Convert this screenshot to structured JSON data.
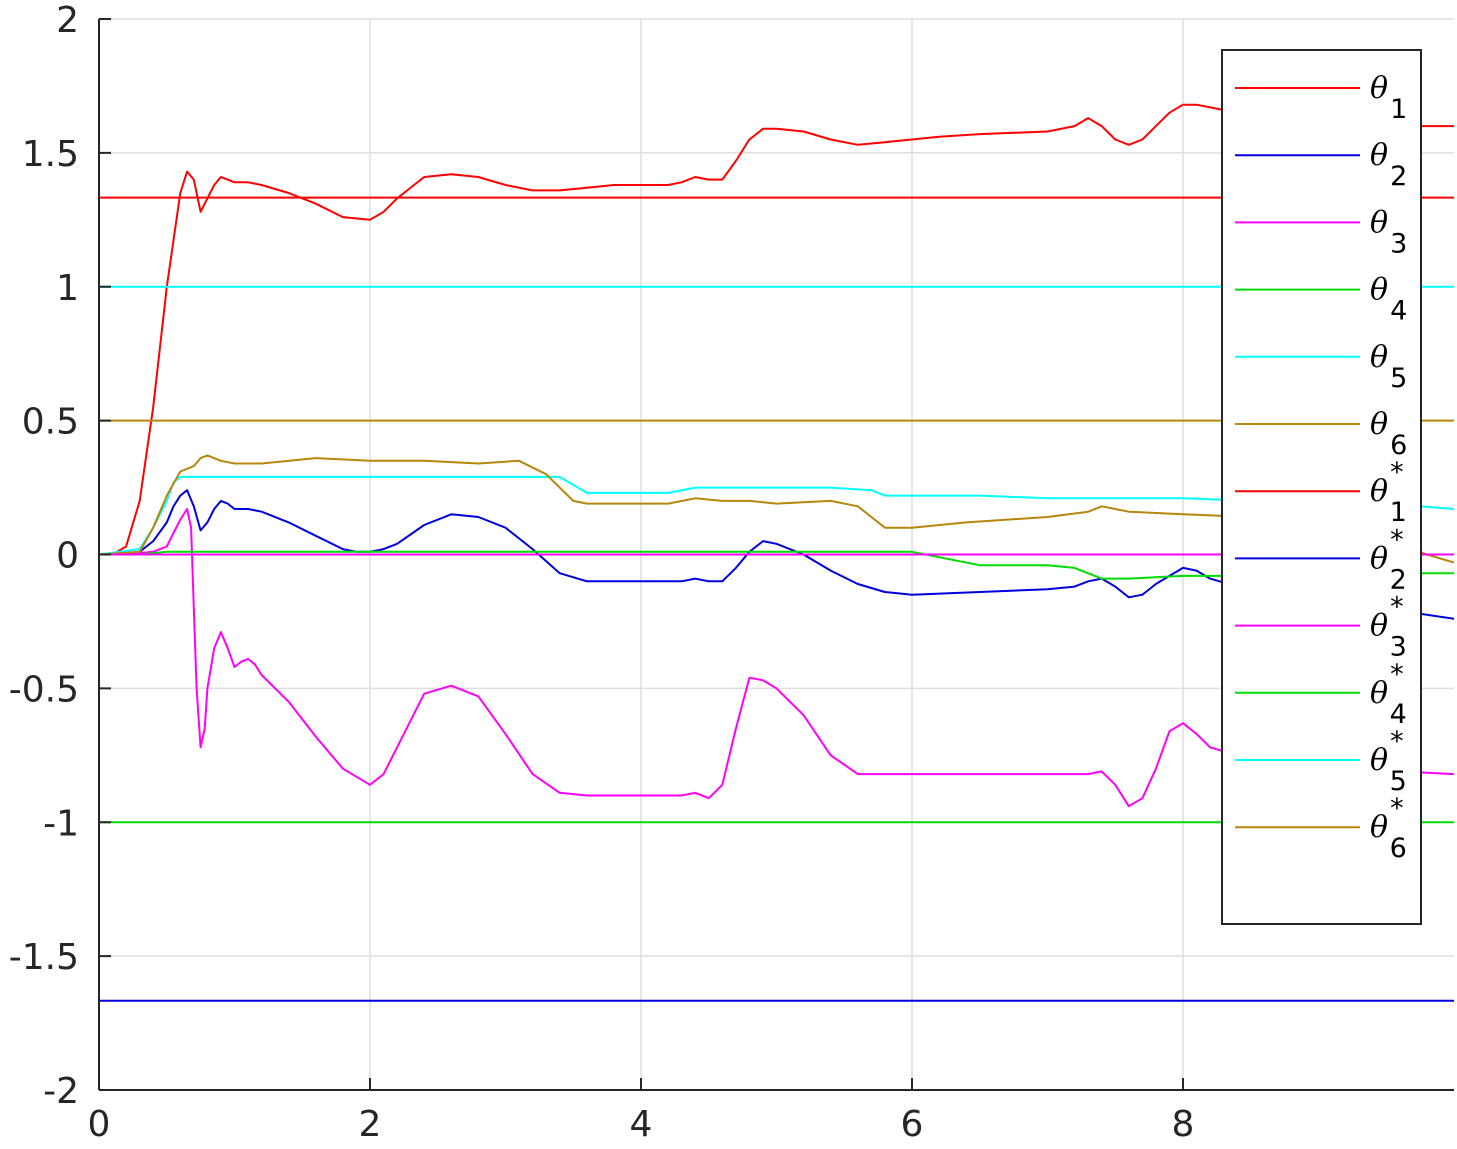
{
  "chart_data": {
    "type": "line",
    "title": "",
    "xlabel": "",
    "ylabel": "",
    "xlim": [
      0,
      10
    ],
    "ylim": [
      -2,
      2
    ],
    "xticks": [
      0,
      2,
      4,
      6,
      8
    ],
    "xtick_labels": [
      "0",
      "2",
      "4",
      "6",
      "8"
    ],
    "yticks": [
      -2,
      -1.5,
      -1,
      -0.5,
      0,
      0.5,
      1,
      1.5,
      2
    ],
    "ytick_labels": [
      "-2",
      "-1.5",
      "-1",
      "-0.5",
      "0",
      "0.5",
      "1",
      "1.5",
      "2"
    ],
    "grid": true,
    "legend_position": "top-right",
    "series": [
      {
        "name": "θ1",
        "label_base": "θ",
        "label_sub": "1",
        "label_sup": "",
        "color": "#ff0000",
        "x": [
          0,
          0.1,
          0.2,
          0.3,
          0.4,
          0.5,
          0.6,
          0.65,
          0.7,
          0.75,
          0.8,
          0.85,
          0.9,
          0.95,
          1.0,
          1.1,
          1.2,
          1.4,
          1.6,
          1.8,
          2.0,
          2.1,
          2.2,
          2.4,
          2.6,
          2.8,
          3.0,
          3.2,
          3.4,
          3.6,
          3.8,
          4.0,
          4.2,
          4.3,
          4.4,
          4.5,
          4.6,
          4.7,
          4.8,
          4.9,
          5.0,
          5.2,
          5.4,
          5.6,
          5.8,
          6.0,
          6.2,
          6.5,
          7.0,
          7.2,
          7.3,
          7.4,
          7.5,
          7.6,
          7.7,
          7.8,
          7.9,
          8.0,
          8.1,
          8.3,
          8.6,
          9.0,
          9.4,
          9.7,
          10.0
        ],
        "y": [
          0.0,
          0.0,
          0.03,
          0.2,
          0.55,
          1.0,
          1.35,
          1.43,
          1.4,
          1.28,
          1.33,
          1.38,
          1.41,
          1.4,
          1.39,
          1.39,
          1.38,
          1.35,
          1.31,
          1.26,
          1.25,
          1.28,
          1.33,
          1.41,
          1.42,
          1.41,
          1.38,
          1.36,
          1.36,
          1.37,
          1.38,
          1.38,
          1.38,
          1.39,
          1.41,
          1.4,
          1.4,
          1.47,
          1.55,
          1.59,
          1.59,
          1.58,
          1.55,
          1.53,
          1.54,
          1.55,
          1.56,
          1.57,
          1.58,
          1.6,
          1.63,
          1.6,
          1.55,
          1.53,
          1.55,
          1.6,
          1.65,
          1.68,
          1.68,
          1.66,
          1.64,
          1.62,
          1.61,
          1.6,
          1.6
        ]
      },
      {
        "name": "θ2",
        "label_base": "θ",
        "label_sub": "2",
        "label_sup": "",
        "color": "#0000dd",
        "x": [
          0,
          0.2,
          0.3,
          0.4,
          0.5,
          0.55,
          0.6,
          0.65,
          0.7,
          0.75,
          0.8,
          0.85,
          0.9,
          0.95,
          1.0,
          1.1,
          1.2,
          1.4,
          1.6,
          1.8,
          1.9,
          2.0,
          2.1,
          2.2,
          2.4,
          2.6,
          2.8,
          3.0,
          3.2,
          3.4,
          3.6,
          3.8,
          4.0,
          4.2,
          4.3,
          4.4,
          4.5,
          4.6,
          4.7,
          4.8,
          4.9,
          5.0,
          5.2,
          5.4,
          5.6,
          5.8,
          6.0,
          6.5,
          7.0,
          7.2,
          7.3,
          7.4,
          7.5,
          7.6,
          7.7,
          7.8,
          7.9,
          8.0,
          8.1,
          8.2,
          8.4,
          8.8,
          9.2,
          9.6,
          10.0
        ],
        "y": [
          0.0,
          0.0,
          0.01,
          0.05,
          0.12,
          0.18,
          0.22,
          0.24,
          0.18,
          0.09,
          0.12,
          0.17,
          0.2,
          0.19,
          0.17,
          0.17,
          0.16,
          0.12,
          0.07,
          0.02,
          0.01,
          0.01,
          0.02,
          0.04,
          0.11,
          0.15,
          0.14,
          0.1,
          0.02,
          -0.07,
          -0.1,
          -0.1,
          -0.1,
          -0.1,
          -0.1,
          -0.09,
          -0.1,
          -0.1,
          -0.05,
          0.01,
          0.05,
          0.04,
          0.0,
          -0.06,
          -0.11,
          -0.14,
          -0.15,
          -0.14,
          -0.13,
          -0.12,
          -0.1,
          -0.09,
          -0.12,
          -0.16,
          -0.15,
          -0.11,
          -0.08,
          -0.05,
          -0.06,
          -0.09,
          -0.12,
          -0.15,
          -0.18,
          -0.21,
          -0.24
        ]
      },
      {
        "name": "θ3",
        "label_base": "θ",
        "label_sub": "3",
        "label_sup": "",
        "color": "#ff00ff",
        "x": [
          0,
          0.2,
          0.4,
          0.5,
          0.55,
          0.6,
          0.65,
          0.68,
          0.7,
          0.72,
          0.75,
          0.78,
          0.8,
          0.85,
          0.9,
          0.95,
          1.0,
          1.05,
          1.1,
          1.15,
          1.2,
          1.4,
          1.6,
          1.8,
          2.0,
          2.1,
          2.2,
          2.4,
          2.6,
          2.8,
          3.0,
          3.2,
          3.4,
          3.6,
          3.8,
          4.0,
          4.2,
          4.3,
          4.4,
          4.5,
          4.6,
          4.7,
          4.8,
          4.9,
          5.0,
          5.2,
          5.4,
          5.6,
          5.8,
          6.0,
          6.5,
          7.0,
          7.2,
          7.3,
          7.4,
          7.5,
          7.6,
          7.7,
          7.8,
          7.9,
          8.0,
          8.1,
          8.2,
          8.4,
          8.8,
          9.2,
          9.6,
          10.0
        ],
        "y": [
          0.0,
          0.0,
          0.01,
          0.03,
          0.08,
          0.13,
          0.17,
          0.1,
          -0.2,
          -0.5,
          -0.72,
          -0.65,
          -0.5,
          -0.35,
          -0.29,
          -0.35,
          -0.42,
          -0.4,
          -0.39,
          -0.41,
          -0.45,
          -0.55,
          -0.68,
          -0.8,
          -0.86,
          -0.82,
          -0.72,
          -0.52,
          -0.49,
          -0.53,
          -0.67,
          -0.82,
          -0.89,
          -0.9,
          -0.9,
          -0.9,
          -0.9,
          -0.9,
          -0.89,
          -0.91,
          -0.86,
          -0.65,
          -0.46,
          -0.47,
          -0.5,
          -0.6,
          -0.75,
          -0.82,
          -0.82,
          -0.82,
          -0.82,
          -0.82,
          -0.82,
          -0.82,
          -0.81,
          -0.86,
          -0.94,
          -0.91,
          -0.8,
          -0.66,
          -0.63,
          -0.67,
          -0.72,
          -0.75,
          -0.78,
          -0.8,
          -0.81,
          -0.82
        ]
      },
      {
        "name": "θ4",
        "label_base": "θ",
        "label_sub": "4",
        "label_sup": "",
        "color": "#00dd00",
        "x": [
          0,
          0.3,
          0.5,
          0.6,
          1.0,
          2.0,
          3.0,
          4.0,
          5.0,
          6.0,
          6.2,
          6.5,
          7.0,
          7.2,
          7.4,
          7.6,
          8.0,
          8.5,
          9.0,
          9.5,
          10.0
        ],
        "y": [
          0.0,
          0.0,
          0.01,
          0.01,
          0.01,
          0.01,
          0.01,
          0.01,
          0.01,
          0.01,
          -0.01,
          -0.04,
          -0.04,
          -0.05,
          -0.09,
          -0.09,
          -0.08,
          -0.08,
          -0.07,
          -0.07,
          -0.07
        ]
      },
      {
        "name": "θ5",
        "label_base": "θ",
        "label_sub": "5",
        "label_sup": "",
        "color": "#00ffff",
        "x": [
          0,
          0.3,
          0.4,
          0.5,
          0.55,
          0.6,
          1.0,
          2.0,
          3.0,
          3.4,
          3.5,
          3.6,
          4.0,
          4.2,
          4.4,
          4.6,
          5.0,
          5.4,
          5.7,
          5.8,
          6.0,
          6.5,
          7.0,
          7.5,
          8.0,
          8.5,
          9.0,
          9.5,
          10.0
        ],
        "y": [
          0.0,
          0.02,
          0.1,
          0.2,
          0.27,
          0.29,
          0.29,
          0.29,
          0.29,
          0.29,
          0.26,
          0.23,
          0.23,
          0.23,
          0.25,
          0.25,
          0.25,
          0.25,
          0.24,
          0.22,
          0.22,
          0.22,
          0.21,
          0.21,
          0.21,
          0.2,
          0.2,
          0.19,
          0.17
        ]
      },
      {
        "name": "θ6",
        "label_base": "θ",
        "label_sub": "6",
        "label_sup": "",
        "color": "#b8860b",
        "x": [
          0,
          0.3,
          0.4,
          0.5,
          0.6,
          0.7,
          0.75,
          0.8,
          0.9,
          1.0,
          1.2,
          1.6,
          2.0,
          2.4,
          2.8,
          3.1,
          3.3,
          3.5,
          3.6,
          4.0,
          4.2,
          4.4,
          4.6,
          4.8,
          5.0,
          5.4,
          5.6,
          5.8,
          6.0,
          6.4,
          7.0,
          7.3,
          7.4,
          7.5,
          7.6,
          8.0,
          8.5,
          9.0,
          9.5,
          9.8,
          10.0
        ],
        "y": [
          0.0,
          0.01,
          0.1,
          0.22,
          0.31,
          0.33,
          0.36,
          0.37,
          0.35,
          0.34,
          0.34,
          0.36,
          0.35,
          0.35,
          0.34,
          0.35,
          0.3,
          0.2,
          0.19,
          0.19,
          0.19,
          0.21,
          0.2,
          0.2,
          0.19,
          0.2,
          0.18,
          0.1,
          0.1,
          0.12,
          0.14,
          0.16,
          0.18,
          0.17,
          0.16,
          0.15,
          0.14,
          0.12,
          0.06,
          0.0,
          -0.03
        ]
      },
      {
        "name": "θ1*",
        "label_base": "θ",
        "label_sub": "1",
        "label_sup": "*",
        "color": "#ff0000",
        "x": [
          0,
          10
        ],
        "y": [
          1.333,
          1.333
        ]
      },
      {
        "name": "θ2*",
        "label_base": "θ",
        "label_sub": "2",
        "label_sup": "*",
        "color": "#0000dd",
        "x": [
          0,
          10
        ],
        "y": [
          -1.667,
          -1.667
        ]
      },
      {
        "name": "θ3*",
        "label_base": "θ",
        "label_sub": "3",
        "label_sup": "*",
        "color": "#ff00ff",
        "x": [
          0,
          10
        ],
        "y": [
          0.0,
          0.0
        ]
      },
      {
        "name": "θ4*",
        "label_base": "θ",
        "label_sub": "4",
        "label_sup": "*",
        "color": "#00dd00",
        "x": [
          0,
          10
        ],
        "y": [
          -1.0,
          -1.0
        ]
      },
      {
        "name": "θ5*",
        "label_base": "θ",
        "label_sub": "5",
        "label_sup": "*",
        "color": "#00ffff",
        "x": [
          0,
          10
        ],
        "y": [
          1.0,
          1.0
        ]
      },
      {
        "name": "θ6*",
        "label_base": "θ",
        "label_sub": "6",
        "label_sup": "*",
        "color": "#b8860b",
        "x": [
          0,
          10
        ],
        "y": [
          0.5,
          0.5
        ]
      }
    ]
  }
}
